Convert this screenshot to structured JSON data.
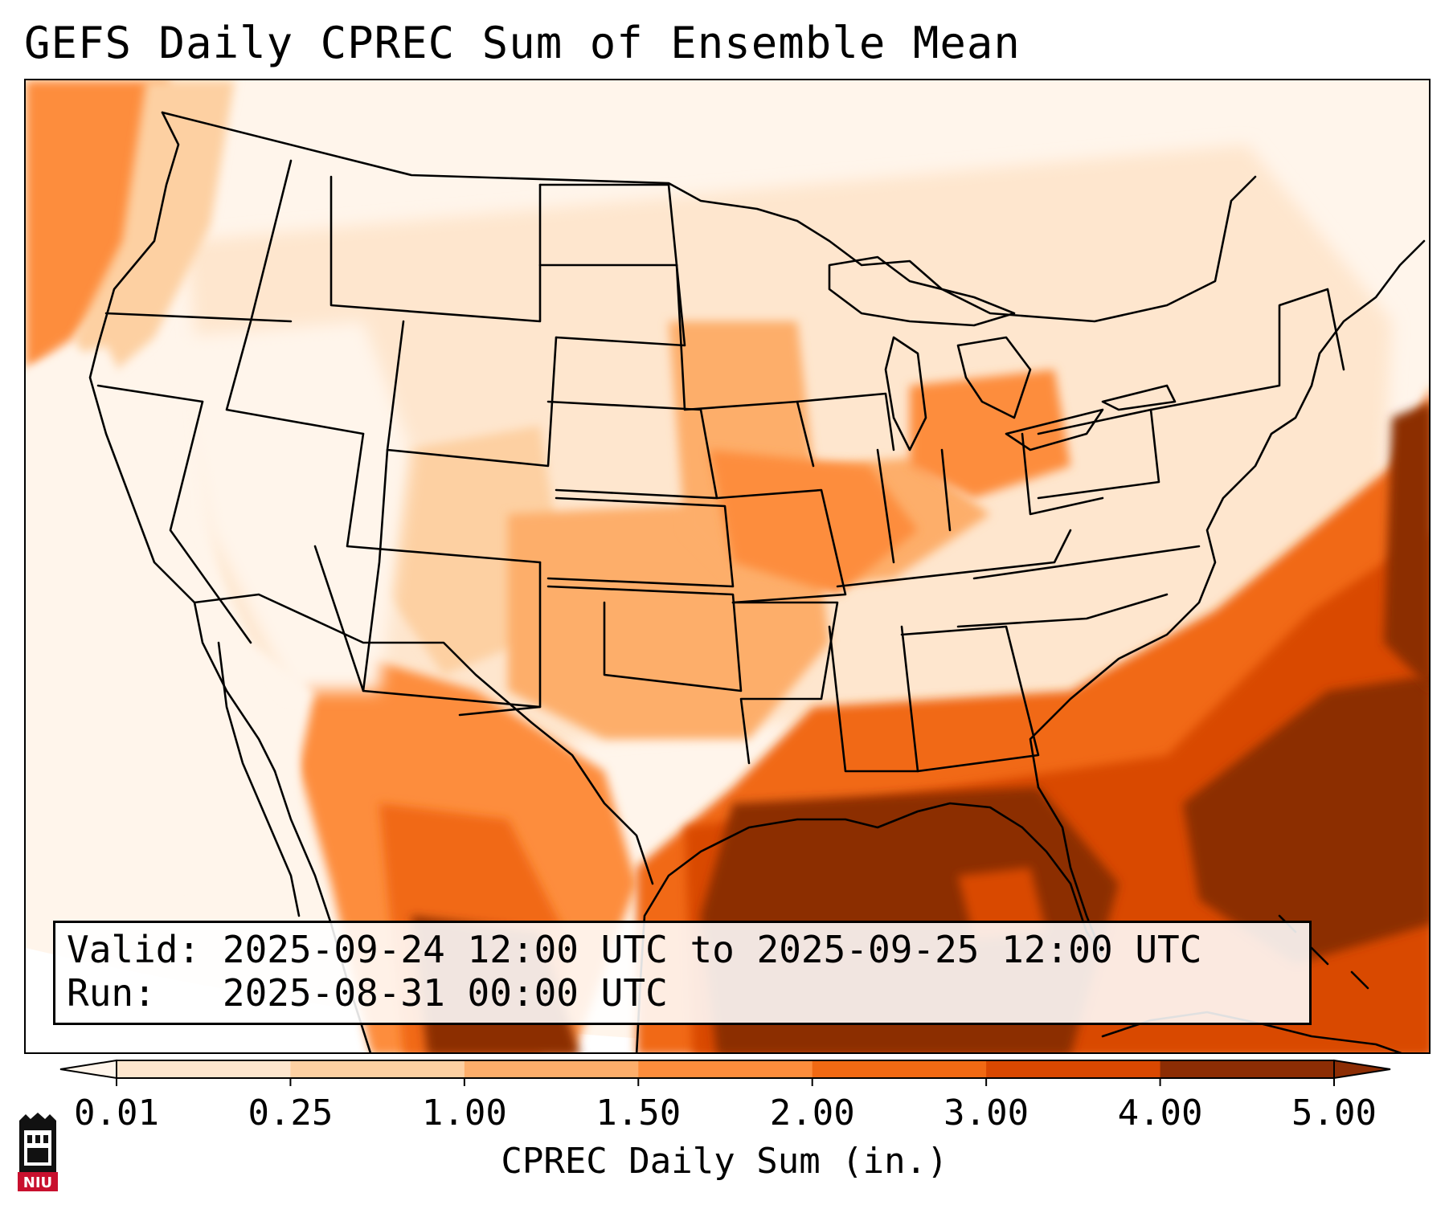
{
  "title": "GEFS Daily CPREC Sum of Ensemble Mean",
  "info": {
    "valid_label": "Valid:",
    "valid_value": "2025-09-24 12:00 UTC to 2025-09-25 12:00 UTC",
    "run_label": "Run:",
    "run_value": "2025-08-31 00:00 UTC"
  },
  "colorbar": {
    "label": "CPREC Daily Sum (in.)",
    "ticks": [
      "0.01",
      "0.25",
      "1.00",
      "1.50",
      "2.00",
      "3.00",
      "4.00",
      "5.00"
    ],
    "colors": [
      "#fff5eb",
      "#fee6ce",
      "#fdd0a2",
      "#fdae6b",
      "#fd8d3c",
      "#f16913",
      "#d94801",
      "#8c2d04"
    ],
    "extend": "both"
  },
  "logo": {
    "text": "NIU",
    "color": "#c8102e",
    "icon": "university-tower-icon"
  },
  "map": {
    "projection": "lambert-conformal",
    "region": "Contiguous United States",
    "field_colors": {
      "lightest": "#fff5eb",
      "light": "#fee6ce",
      "pale": "#fdd0a2",
      "mid": "#fdae6b",
      "orange": "#fd8d3c",
      "deep": "#f16913",
      "darker": "#d94801",
      "darkest": "#8c2d04"
    }
  }
}
